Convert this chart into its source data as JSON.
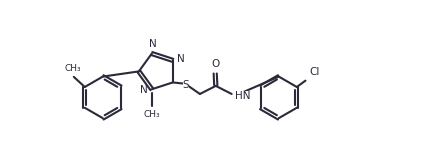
{
  "bg_color": "#ffffff",
  "line_color": "#2a2a3a",
  "line_width": 1.5,
  "font_size": 7.5,
  "figsize": [
    4.22,
    1.63
  ],
  "dpi": 100,
  "xlim": [
    0,
    10.0
  ],
  "ylim": [
    -2.8,
    2.8
  ]
}
